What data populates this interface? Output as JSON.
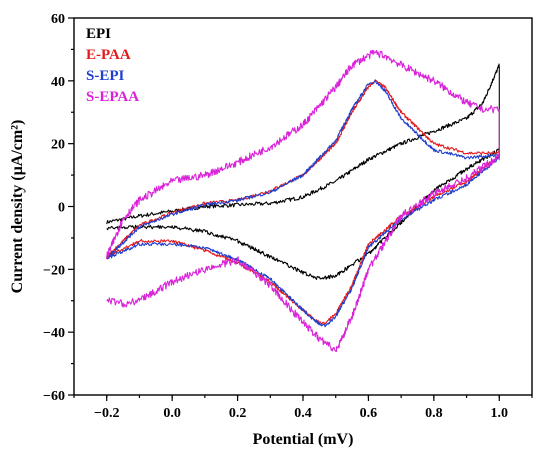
{
  "chart_data": {
    "type": "line",
    "title": "",
    "xlabel": "Potential (mV)",
    "ylabel": "Current density (µA/cm²)",
    "xlim": [
      -0.3,
      1.1
    ],
    "ylim": [
      -60,
      60
    ],
    "xticks": [
      "−0.2",
      "0.0",
      "0.2",
      "0.4",
      "0.6",
      "0.8",
      "1.0"
    ],
    "yticks": [
      "−60",
      "−40",
      "−20",
      "0",
      "20",
      "40",
      "60"
    ],
    "legend_position": "top-left",
    "grid": false,
    "series": [
      {
        "name": "EPI",
        "color": "#000000",
        "noise": 0.6,
        "x": [
          -0.2,
          -0.1,
          0.0,
          0.1,
          0.2,
          0.3,
          0.4,
          0.5,
          0.6,
          0.7,
          0.8,
          0.9,
          0.95,
          1.0,
          1.0,
          0.9,
          0.8,
          0.7,
          0.6,
          0.5,
          0.45,
          0.4,
          0.3,
          0.2,
          0.1,
          0.0,
          -0.1,
          -0.2
        ],
        "y": [
          -5,
          -3,
          -1.5,
          0,
          0.5,
          1,
          3,
          8,
          15,
          20,
          24,
          28,
          33,
          45,
          18,
          12,
          5,
          -5,
          -15,
          -22,
          -23,
          -21,
          -16,
          -11,
          -8,
          -6.5,
          -6.5,
          -7
        ]
      },
      {
        "name": "E-PAA",
        "color": "#e31a1c",
        "noise": 0.5,
        "x": [
          -0.2,
          -0.1,
          0.0,
          0.1,
          0.2,
          0.3,
          0.4,
          0.5,
          0.55,
          0.6,
          0.62,
          0.65,
          0.7,
          0.8,
          0.9,
          1.0,
          1.0,
          0.9,
          0.8,
          0.7,
          0.6,
          0.55,
          0.5,
          0.47,
          0.45,
          0.4,
          0.3,
          0.2,
          0.1,
          0.0,
          -0.1,
          -0.2
        ],
        "y": [
          -16,
          -6,
          -2,
          1,
          2,
          5,
          10,
          20,
          30,
          38,
          40,
          38,
          30,
          20,
          17,
          17,
          16,
          8,
          3,
          -3,
          -12,
          -25,
          -34,
          -37,
          -37,
          -33,
          -24,
          -18,
          -14,
          -11,
          -11,
          -16
        ]
      },
      {
        "name": "S-EPI",
        "color": "#1f3fcf",
        "noise": 0.5,
        "x": [
          -0.2,
          -0.1,
          0.0,
          0.1,
          0.2,
          0.3,
          0.4,
          0.5,
          0.55,
          0.6,
          0.62,
          0.65,
          0.7,
          0.8,
          0.9,
          1.0,
          1.0,
          0.9,
          0.8,
          0.7,
          0.6,
          0.55,
          0.5,
          0.47,
          0.45,
          0.4,
          0.3,
          0.2,
          0.1,
          0.0,
          -0.1,
          -0.2
        ],
        "y": [
          -16.5,
          -6.5,
          -2.5,
          0.5,
          2,
          4.5,
          10,
          21,
          31,
          39,
          40,
          37,
          28,
          18,
          15.5,
          16.5,
          15.5,
          7,
          2,
          -4,
          -13,
          -26,
          -35,
          -38,
          -37.5,
          -33,
          -23,
          -17,
          -13,
          -12,
          -12,
          -16.5
        ]
      },
      {
        "name": "S-EPAA",
        "color": "#d923d9",
        "noise": 1.2,
        "x": [
          -0.2,
          -0.15,
          -0.1,
          0.0,
          0.1,
          0.2,
          0.3,
          0.4,
          0.5,
          0.55,
          0.6,
          0.62,
          0.65,
          0.7,
          0.8,
          0.9,
          0.95,
          1.0,
          1.0,
          0.9,
          0.8,
          0.7,
          0.6,
          0.55,
          0.5,
          0.45,
          0.4,
          0.3,
          0.2,
          0.1,
          0.0,
          -0.1,
          -0.15,
          -0.2
        ],
        "y": [
          -16,
          -4,
          2,
          8,
          10,
          14,
          19,
          26,
          38,
          45,
          48,
          49,
          48,
          45,
          40,
          33,
          31,
          31,
          16,
          9,
          4,
          -3,
          -20,
          -35,
          -46,
          -42,
          -37,
          -25,
          -17,
          -20,
          -24,
          -30,
          -31,
          -30
        ]
      }
    ]
  }
}
